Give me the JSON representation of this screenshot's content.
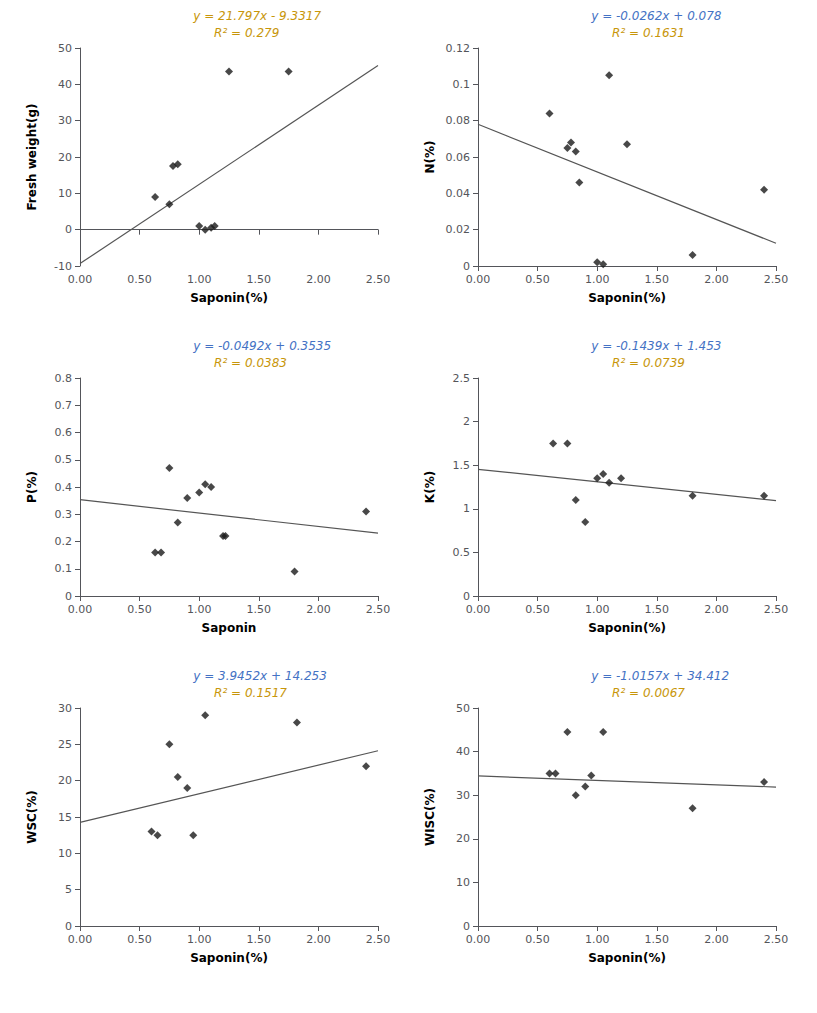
{
  "chart_data": [
    {
      "type": "scatter",
      "xlabel": "Saponin(%)",
      "ylabel": "Fresh weight(g)",
      "grid": false,
      "xlim": [
        0.0,
        2.5
      ],
      "ylim": [
        -10,
        50
      ],
      "xticks": [
        {
          "value": 0.0,
          "label": "0.00"
        },
        {
          "value": 0.5,
          "label": "0.50"
        },
        {
          "value": 1.0,
          "label": "1.00"
        },
        {
          "value": 1.5,
          "label": "1.50"
        },
        {
          "value": 2.0,
          "label": "2.00"
        },
        {
          "value": 2.5,
          "label": "2.50"
        }
      ],
      "yticks": [
        -10,
        0,
        10,
        20,
        30,
        40,
        50
      ],
      "series": [
        {
          "type": "scatter",
          "marker": "diamond",
          "color": "#1a1a1a",
          "x": [
            0.63,
            0.75,
            0.78,
            0.82,
            1.0,
            1.05,
            1.1,
            1.13,
            1.25,
            1.75
          ],
          "values": [
            9.0,
            7.0,
            17.5,
            18.0,
            1.0,
            0.0,
            0.5,
            1.0,
            43.5,
            43.5
          ]
        },
        {
          "type": "line",
          "color": "#555555",
          "x": [
            0.0,
            2.5
          ],
          "values": [
            -9.3317,
            45.1608
          ]
        }
      ],
      "annotations": [
        {
          "text": "y = 21.797x - 9.3317",
          "color": "#C8960A"
        },
        {
          "text": "R² = 0.279",
          "color": "#C8960A"
        }
      ]
    },
    {
      "type": "scatter",
      "xlabel": "Saponin(%)",
      "ylabel": "N(%)",
      "grid": false,
      "xlim": [
        0.0,
        2.5
      ],
      "ylim": [
        0,
        0.12
      ],
      "xticks": [
        {
          "value": 0.0,
          "label": "0.00"
        },
        {
          "value": 0.5,
          "label": "0.50"
        },
        {
          "value": 1.0,
          "label": "1.00"
        },
        {
          "value": 1.5,
          "label": "1.50"
        },
        {
          "value": 2.0,
          "label": "2.00"
        },
        {
          "value": 2.5,
          "label": "2.50"
        }
      ],
      "yticks": [
        0,
        0.02,
        0.04,
        0.06,
        0.08,
        0.1,
        0.12
      ],
      "series": [
        {
          "type": "scatter",
          "marker": "diamond",
          "color": "#1a1a1a",
          "x": [
            0.6,
            0.75,
            0.78,
            0.82,
            0.85,
            1.0,
            1.05,
            1.1,
            1.25,
            1.8,
            2.4
          ],
          "values": [
            0.084,
            0.065,
            0.068,
            0.063,
            0.046,
            0.002,
            0.001,
            0.105,
            0.067,
            0.006,
            0.042
          ]
        },
        {
          "type": "line",
          "color": "#555555",
          "x": [
            0.0,
            2.5
          ],
          "values": [
            0.078,
            0.0125
          ]
        }
      ],
      "annotations": [
        {
          "text": "y = -0.0262x + 0.078",
          "color": "#4472C4"
        },
        {
          "text": "R² = 0.1631",
          "color": "#C8960A"
        }
      ]
    },
    {
      "type": "scatter",
      "xlabel": "Saponin",
      "ylabel": "P(%)",
      "grid": false,
      "xlim": [
        0.0,
        2.5
      ],
      "ylim": [
        0,
        0.8
      ],
      "xticks": [
        {
          "value": 0.0,
          "label": "0.00"
        },
        {
          "value": 0.5,
          "label": "0.50"
        },
        {
          "value": 1.0,
          "label": "1.00"
        },
        {
          "value": 1.5,
          "label": "1.50"
        },
        {
          "value": 2.0,
          "label": "2.00"
        },
        {
          "value": 2.5,
          "label": "2.50"
        }
      ],
      "yticks": [
        0,
        0.1,
        0.2,
        0.3,
        0.4,
        0.5,
        0.6,
        0.7,
        0.8
      ],
      "series": [
        {
          "type": "scatter",
          "marker": "diamond",
          "color": "#1a1a1a",
          "x": [
            0.63,
            0.68,
            0.75,
            0.82,
            0.9,
            1.0,
            1.05,
            1.1,
            1.2,
            1.22,
            1.8,
            2.4
          ],
          "values": [
            0.16,
            0.16,
            0.47,
            0.27,
            0.36,
            0.38,
            0.41,
            0.4,
            0.22,
            0.22,
            0.09,
            0.31
          ]
        },
        {
          "type": "line",
          "color": "#555555",
          "x": [
            0.0,
            2.5
          ],
          "values": [
            0.3535,
            0.2305
          ]
        }
      ],
      "annotations": [
        {
          "text": "y = -0.0492x + 0.3535",
          "color": "#4472C4"
        },
        {
          "text": "R² = 0.0383",
          "color": "#C8960A"
        }
      ]
    },
    {
      "type": "scatter",
      "xlabel": "Saponin(%)",
      "ylabel": "K(%)",
      "grid": false,
      "xlim": [
        0.0,
        2.5
      ],
      "ylim": [
        0,
        2.5
      ],
      "xticks": [
        {
          "value": 0.0,
          "label": "0.00"
        },
        {
          "value": 0.5,
          "label": "0.50"
        },
        {
          "value": 1.0,
          "label": "1.00"
        },
        {
          "value": 1.5,
          "label": "1.50"
        },
        {
          "value": 2.0,
          "label": "2.00"
        },
        {
          "value": 2.5,
          "label": "2.50"
        }
      ],
      "yticks": [
        0,
        0.5,
        1,
        1.5,
        2,
        2.5
      ],
      "series": [
        {
          "type": "scatter",
          "marker": "diamond",
          "color": "#1a1a1a",
          "x": [
            0.63,
            0.75,
            0.82,
            0.9,
            1.0,
            1.05,
            1.1,
            1.2,
            1.8,
            2.4
          ],
          "values": [
            1.75,
            1.75,
            1.1,
            0.85,
            1.35,
            1.4,
            1.3,
            1.35,
            1.15,
            1.15
          ]
        },
        {
          "type": "line",
          "color": "#555555",
          "x": [
            0.0,
            2.5
          ],
          "values": [
            1.453,
            1.09325
          ]
        }
      ],
      "annotations": [
        {
          "text": "y = -0.1439x + 1.453",
          "color": "#4472C4"
        },
        {
          "text": "R² = 0.0739",
          "color": "#C8960A"
        }
      ]
    },
    {
      "type": "scatter",
      "xlabel": "Saponin(%)",
      "ylabel": "WSC(%)",
      "grid": false,
      "xlim": [
        0.0,
        2.5
      ],
      "ylim": [
        0,
        30
      ],
      "xticks": [
        {
          "value": 0.0,
          "label": "0.00"
        },
        {
          "value": 0.5,
          "label": "0.50"
        },
        {
          "value": 1.0,
          "label": "1.00"
        },
        {
          "value": 1.5,
          "label": "1.50"
        },
        {
          "value": 2.0,
          "label": "2.00"
        },
        {
          "value": 2.5,
          "label": "2.50"
        }
      ],
      "yticks": [
        0,
        5,
        10,
        15,
        20,
        25,
        30
      ],
      "series": [
        {
          "type": "scatter",
          "marker": "diamond",
          "color": "#1a1a1a",
          "x": [
            0.6,
            0.65,
            0.75,
            0.82,
            0.9,
            0.95,
            1.05,
            1.82,
            2.4
          ],
          "values": [
            13.0,
            12.5,
            25.0,
            20.5,
            19.0,
            12.5,
            29.0,
            28.0,
            22.0
          ]
        },
        {
          "type": "line",
          "color": "#555555",
          "x": [
            0.0,
            2.5
          ],
          "values": [
            14.253,
            24.116
          ]
        }
      ],
      "annotations": [
        {
          "text": "y = 3.9452x + 14.253",
          "color": "#4472C4"
        },
        {
          "text": "R² = 0.1517",
          "color": "#C8960A"
        }
      ]
    },
    {
      "type": "scatter",
      "xlabel": "Saponin(%)",
      "ylabel": "WISC(%)",
      "grid": false,
      "xlim": [
        0.0,
        2.5
      ],
      "ylim": [
        0,
        50
      ],
      "xticks": [
        {
          "value": 0.0,
          "label": "0.00"
        },
        {
          "value": 0.5,
          "label": "0.50"
        },
        {
          "value": 1.0,
          "label": "1.00"
        },
        {
          "value": 1.5,
          "label": "1.50"
        },
        {
          "value": 2.0,
          "label": "2.00"
        },
        {
          "value": 2.5,
          "label": "2.50"
        }
      ],
      "yticks": [
        0,
        10,
        20,
        30,
        40,
        50
      ],
      "series": [
        {
          "type": "scatter",
          "marker": "diamond",
          "color": "#1a1a1a",
          "x": [
            0.6,
            0.65,
            0.75,
            0.82,
            0.9,
            0.95,
            1.05,
            1.8,
            2.4
          ],
          "values": [
            35.0,
            35.0,
            44.5,
            30.0,
            32.0,
            34.5,
            44.5,
            27.0,
            33.0
          ]
        },
        {
          "type": "line",
          "color": "#555555",
          "x": [
            0.0,
            2.5
          ],
          "values": [
            34.412,
            31.87275
          ]
        }
      ],
      "annotations": [
        {
          "text": "y = -1.0157x + 34.412",
          "color": "#4472C4"
        },
        {
          "text": "R² = 0.0067",
          "color": "#C8960A"
        }
      ]
    }
  ]
}
